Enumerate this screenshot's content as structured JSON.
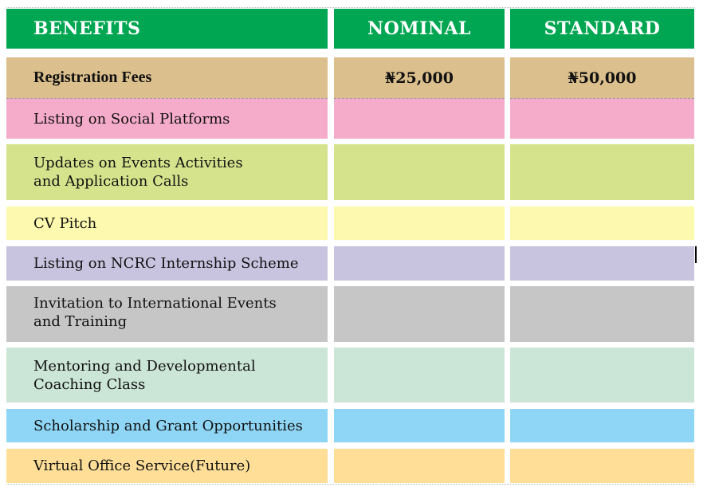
{
  "table": {
    "headers": {
      "benefits": "BENEFITS",
      "nominal": "NOMINAL",
      "standard": "STANDARD"
    },
    "header_color": "#00a651",
    "fees": {
      "label": "Registration Fees",
      "nominal": "₦25,000",
      "standard": "₦50,000",
      "color": "#dbbf8c"
    },
    "rows": [
      {
        "label": "Listing on Social Platforms",
        "color": "#f5acca"
      },
      {
        "label_line1": "Updates on Events Activities",
        "label_line2": "and Application Calls",
        "color": "#d5e38c"
      },
      {
        "label": "CV Pitch",
        "color": "#fdf9ae"
      },
      {
        "label": "Listing on NCRC Internship Scheme",
        "color": "#c8c4e0"
      },
      {
        "label_line1": "Invitation to International Events",
        "label_line2": "and Training",
        "color": "#c6c6c6"
      },
      {
        "label_line1": "Mentoring and Developmental",
        "label_line2": "Coaching Class",
        "color": "#cbe5d7"
      },
      {
        "label": "Scholarship and Grant Opportunities",
        "color": "#8fd6f6"
      },
      {
        "label": "Virtual Office Service(Future)",
        "color": "#ffdf98"
      }
    ]
  }
}
